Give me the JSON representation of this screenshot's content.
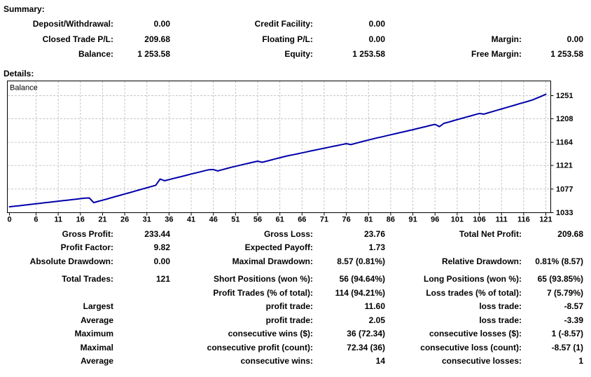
{
  "summary": {
    "title": "Summary:",
    "rows": [
      {
        "cells": [
          {
            "label": "Deposit/Withdrawal:",
            "value": "0.00"
          },
          {
            "label": "Credit Facility:",
            "value": "0.00"
          },
          {
            "label": "",
            "value": ""
          }
        ]
      },
      {
        "cells": [
          {
            "label": "Closed Trade P/L:",
            "value": "209.68"
          },
          {
            "label": "Floating P/L:",
            "value": "0.00"
          },
          {
            "label": "Margin:",
            "value": "0.00"
          }
        ]
      },
      {
        "cells": [
          {
            "label": "Balance:",
            "value": "1 253.58"
          },
          {
            "label": "Equity:",
            "value": "1 253.58"
          },
          {
            "label": "Free Margin:",
            "value": "1 253.58"
          }
        ]
      }
    ]
  },
  "details": {
    "title": "Details:",
    "rows": [
      {
        "cells": [
          {
            "label": "Gross Profit:",
            "value": "233.44"
          },
          {
            "label": "Gross Loss:",
            "value": "23.76"
          },
          {
            "label": "Total Net Profit:",
            "value": "209.68"
          }
        ]
      },
      {
        "cells": [
          {
            "label": "Profit Factor:",
            "value": "9.82"
          },
          {
            "label": "Expected Payoff:",
            "value": "1.73"
          },
          {
            "label": "",
            "value": ""
          }
        ]
      },
      {
        "cells": [
          {
            "label": "Absolute Drawdown:",
            "value": "0.00"
          },
          {
            "label": "Maximal Drawdown:",
            "value": "8.57 (0.81%)"
          },
          {
            "label": "Relative Drawdown:",
            "value": "0.81% (8.57)"
          }
        ]
      },
      {
        "gap": true,
        "cells": [
          {
            "label": "Total Trades:",
            "value": "121"
          },
          {
            "label": "Short Positions (won %):",
            "value": "56 (94.64%)"
          },
          {
            "label": "Long Positions (won %):",
            "value": "65 (93.85%)"
          }
        ]
      },
      {
        "cells": [
          {
            "label": "",
            "value": ""
          },
          {
            "label": "Profit Trades (% of total):",
            "value": "114 (94.21%)"
          },
          {
            "label": "Loss trades (% of total):",
            "value": "7 (5.79%)"
          }
        ]
      },
      {
        "cells": [
          {
            "label": "Largest",
            "value": ""
          },
          {
            "label": "profit trade:",
            "value": "11.60"
          },
          {
            "label": "loss trade:",
            "value": "-8.57"
          }
        ]
      },
      {
        "cells": [
          {
            "label": "Average",
            "value": ""
          },
          {
            "label": "profit trade:",
            "value": "2.05"
          },
          {
            "label": "loss trade:",
            "value": "-3.39"
          }
        ]
      },
      {
        "cells": [
          {
            "label": "Maximum",
            "value": ""
          },
          {
            "label": "consecutive wins ($):",
            "value": "36 (72.34)"
          },
          {
            "label": "consecutive losses ($):",
            "value": "1 (-8.57)"
          }
        ]
      },
      {
        "cells": [
          {
            "label": "Maximal",
            "value": ""
          },
          {
            "label": "consecutive profit (count):",
            "value": "72.34 (36)"
          },
          {
            "label": "consecutive loss (count):",
            "value": "-8.57 (1)"
          }
        ]
      },
      {
        "cells": [
          {
            "label": "Average",
            "value": ""
          },
          {
            "label": "consecutive wins:",
            "value": "14"
          },
          {
            "label": "consecutive losses:",
            "value": "1"
          }
        ]
      }
    ]
  },
  "chart_data": {
    "type": "line",
    "title": "",
    "legend": "Balance",
    "xlabel": "",
    "ylabel": "",
    "xlim": [
      0,
      121
    ],
    "ylim": [
      1033,
      1278
    ],
    "x_ticks": [
      0,
      6,
      11,
      16,
      21,
      26,
      31,
      36,
      41,
      46,
      51,
      56,
      61,
      66,
      71,
      76,
      81,
      86,
      91,
      96,
      101,
      106,
      111,
      116,
      121
    ],
    "y_ticks": [
      1033,
      1077,
      1121,
      1164,
      1208,
      1251
    ],
    "grid": "dashed",
    "legend_position": "top-left",
    "line_color": "#0000aa",
    "grid_color": "#c6c6c6",
    "series": [
      {
        "name": "Balance",
        "x_start": 0,
        "values": [
          1043.9,
          1044.85,
          1045.8,
          1046.75,
          1047.7,
          1048.65,
          1049.6,
          1050.55,
          1051.5,
          1052.45,
          1053.4,
          1054.35,
          1055.3,
          1056.25,
          1057.2,
          1058.15,
          1059.1,
          1060.05,
          1060.35,
          1051.78,
          1054.0,
          1056.3,
          1058.5,
          1060.9,
          1063.2,
          1065.5,
          1067.8,
          1070.1,
          1072.4,
          1074.8,
          1077.1,
          1079.4,
          1081.7,
          1084.0,
          1095.6,
          1092.5,
          1094.6,
          1096.7,
          1098.8,
          1100.8,
          1102.9,
          1105.0,
          1107.0,
          1109.0,
          1111.0,
          1113.0,
          1113.4,
          1110.8,
          1113.0,
          1115.2,
          1117.4,
          1119.4,
          1121.4,
          1123.3,
          1125.2,
          1127.1,
          1129.0,
          1126.8,
          1129.0,
          1131.1,
          1133.2,
          1135.3,
          1137.4,
          1139.4,
          1141.0,
          1142.6,
          1144.4,
          1146.2,
          1148.0,
          1149.7,
          1151.4,
          1153.1,
          1154.8,
          1156.5,
          1158.2,
          1159.9,
          1161.6,
          1159.8,
          1162.0,
          1164.2,
          1166.3,
          1168.4,
          1170.4,
          1172.4,
          1174.3,
          1176.2,
          1178.1,
          1180.0,
          1181.9,
          1183.8,
          1185.7,
          1187.6,
          1189.6,
          1191.6,
          1193.6,
          1195.6,
          1197.5,
          1193.3,
          1199.5,
          1201.5,
          1204.0,
          1206.3,
          1208.6,
          1210.9,
          1213.2,
          1215.5,
          1217.8,
          1216.51,
          1219.0,
          1221.4,
          1223.8,
          1226.2,
          1228.6,
          1231.0,
          1233.4,
          1235.8,
          1238.2,
          1240.6,
          1243.0,
          1246.5,
          1250.0,
          1253.58
        ]
      }
    ]
  }
}
